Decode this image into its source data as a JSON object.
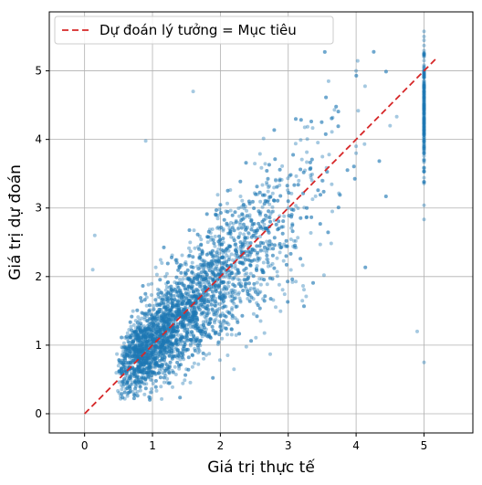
{
  "chart_data": {
    "type": "scatter",
    "xlabel": "Giá trị thực tế",
    "ylabel": "Giá trị dự đoán",
    "xlim": [
      -0.52,
      5.72
    ],
    "ylim": [
      -0.28,
      5.86
    ],
    "xticks": [
      0,
      1,
      2,
      3,
      4,
      5
    ],
    "yticks": [
      0,
      1,
      2,
      3,
      4,
      5
    ],
    "grid": true,
    "legend_position": "top-left",
    "series": [
      {
        "kind": "scatter",
        "color": "#1f77b4",
        "opacity": 0.4,
        "approx_point_count": 4000,
        "sample_points": [
          [
            0.5,
            0.7
          ],
          [
            0.6,
            0.9
          ],
          [
            0.8,
            0.9
          ],
          [
            1.0,
            1.1
          ],
          [
            1.2,
            1.3
          ],
          [
            1.5,
            1.7
          ],
          [
            1.8,
            2.0
          ],
          [
            2.0,
            2.2
          ],
          [
            2.5,
            2.6
          ],
          [
            3.0,
            3.0
          ],
          [
            3.5,
            3.4
          ],
          [
            4.0,
            3.8
          ],
          [
            4.5,
            4.2
          ],
          [
            5.0,
            4.6
          ],
          [
            5.0,
            5.5
          ],
          [
            5.0,
            0.75
          ],
          [
            1.6,
            4.7
          ],
          [
            0.9,
            3.98
          ],
          [
            0.15,
            2.6
          ],
          [
            0.12,
            2.1
          ],
          [
            4.0,
            5.0
          ],
          [
            1.5,
            0.65
          ],
          [
            2.2,
            0.65
          ],
          [
            4.9,
            1.2
          ]
        ]
      },
      {
        "kind": "line",
        "style": "dashed",
        "color": "#d62728",
        "x": [
          0,
          5.2
        ],
        "y": [
          0,
          5.2
        ]
      }
    ],
    "legend": [
      {
        "label": "Dự đoán lý tưởng = Mục tiêu",
        "color": "#d62728",
        "style": "dashed"
      }
    ]
  }
}
